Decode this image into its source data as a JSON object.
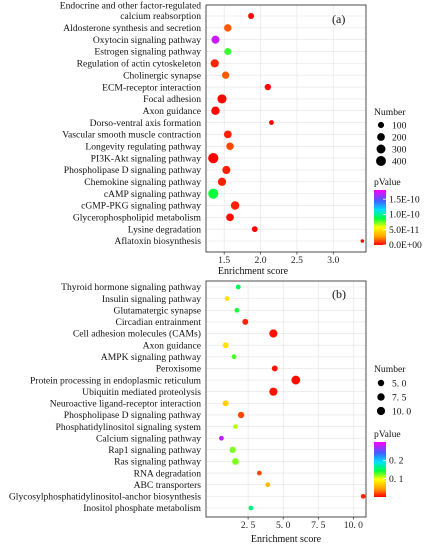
{
  "colors": {
    "background": "#ffffff",
    "grid": "#e3e3e3",
    "panel_border": "#222222",
    "gradient": [
      "#ff0000",
      "#ffa000",
      "#ffff00",
      "#00ff40",
      "#00e0ff",
      "#4060ff",
      "#ff00ff"
    ]
  },
  "chart_data": [
    {
      "type": "scatter",
      "panel_label": "(a)",
      "xlabel": "Enrichment score",
      "ylabel": "",
      "xlim": [
        1.25,
        3.45
      ],
      "xticks": [
        1.5,
        2.0,
        2.5,
        3.0
      ],
      "xtick_labels": [
        "1.5",
        "2.0",
        "2.5",
        "3.0"
      ],
      "grid": true,
      "legend_placement": "right",
      "size_legend": {
        "title": "Number",
        "values": [
          100,
          200,
          300,
          400
        ],
        "labels": [
          "100",
          "200",
          "300",
          "400"
        ],
        "range": [
          0,
          450
        ]
      },
      "color_legend": {
        "title": "pValue",
        "min": 0,
        "max": 1.8e-10,
        "ticks": [
          0,
          5e-11,
          1e-10,
          1.5e-10
        ],
        "tick_labels": [
          "0.0E+00",
          "5.0E-11",
          "1.0E-10",
          "1.5E-10"
        ]
      },
      "categories": [
        "Endocrine and other factor-regulated calcium reabsorption",
        "Aldosterone synthesis and secretion",
        "Oxytocin signaling pathway",
        "Estrogen signaling pathway",
        "Regulation of actin cytoskeleton",
        "Cholinergic synapse",
        "ECM-receptor interaction",
        "Focal adhesion",
        "Axon guidance",
        "Dorso-ventral axis formation",
        "Vascular smooth muscle contraction",
        "Longevity regulating pathway",
        "PI3K-Akt signaling pathway",
        "Phospholipase D signaling pathway",
        "Chemokine signaling pathway",
        "cAMP signaling pathway",
        "cGMP-PKG signaling pathway",
        "Glycerophospholipid metabolism",
        "Lysine degradation",
        "Aflatoxin biosynthesis"
      ],
      "category_lines": [
        [
          "Endocrine and other factor-regulated",
          "calcium reabsorption"
        ],
        [
          "Aldosterone synthesis and secretion"
        ],
        [
          "Oxytocin signaling pathway"
        ],
        [
          "Estrogen signaling pathway"
        ],
        [
          "Regulation of actin cytoskeleton"
        ],
        [
          "Cholinergic synapse"
        ],
        [
          "ECM-receptor interaction"
        ],
        [
          "Focal adhesion"
        ],
        [
          "Axon guidance"
        ],
        [
          "Dorso-ventral axis formation"
        ],
        [
          "Vascular smooth muscle contraction"
        ],
        [
          "Longevity regulating pathway"
        ],
        [
          "PI3K-Akt signaling pathway"
        ],
        [
          "Phospholipase D signaling pathway"
        ],
        [
          "Chemokine signaling pathway"
        ],
        [
          "cAMP signaling pathway"
        ],
        [
          "cGMP-PKG signaling pathway"
        ],
        [
          "Glycerophospholipid metabolism"
        ],
        [
          "Lysine degradation"
        ],
        [
          "Aflatoxin biosynthesis"
        ]
      ],
      "x": [
        1.87,
        1.55,
        1.38,
        1.55,
        1.37,
        1.52,
        2.1,
        1.47,
        1.38,
        2.15,
        1.55,
        1.58,
        1.35,
        1.53,
        1.47,
        1.35,
        1.65,
        1.58,
        1.92,
        3.4
      ],
      "number": [
        90,
        180,
        230,
        150,
        240,
        170,
        110,
        320,
        250,
        40,
        200,
        180,
        430,
        230,
        240,
        420,
        260,
        200,
        80,
        10
      ],
      "pvalue": [
        1e-12,
        1.5e-11,
        1.7e-10,
        8e-11,
        6e-12,
        1.5e-11,
        1e-12,
        1e-13,
        1e-12,
        1e-13,
        5e-12,
        1.2e-11,
        1e-14,
        5e-12,
        5e-12,
        8.5e-11,
        5e-12,
        2e-12,
        1e-13,
        1e-13
      ]
    },
    {
      "type": "scatter",
      "panel_label": "(b)",
      "xlabel": "Enrichment score",
      "ylabel": "",
      "xlim": [
        -0.5,
        10.9
      ],
      "xticks": [
        2.5,
        5.0,
        7.5,
        10.0
      ],
      "xtick_labels": [
        "2. 5",
        "5. 0",
        "7. 5",
        "10. 0"
      ],
      "grid": true,
      "legend_placement": "right",
      "size_legend": {
        "title": "Number",
        "values": [
          5,
          7.5,
          10
        ],
        "labels": [
          "5. 0",
          "7. 5",
          "10. 0"
        ],
        "range": [
          0,
          12
        ]
      },
      "color_legend": {
        "title": "pValue",
        "min": 0,
        "max": 0.3,
        "ticks": [
          0.1,
          0.2
        ],
        "tick_labels": [
          "0. 1",
          "0. 2"
        ]
      },
      "categories": [
        "Thyroid hormone signaling pathway",
        "Insulin signaling pathway",
        "Glutamatergic synapse",
        "Circadian entrainment",
        "Cell adhesion molecules (CAMs)",
        "Axon guidance",
        "AMPK signaling pathway",
        "Peroxisome",
        "Protein processing in endoplasmic reticulum",
        "Ubiquitin mediated proteolysis",
        "Neuroactive ligand-receptor interaction",
        "Phospholipase D signaling pathway",
        "Phosphatidylinositol signaling system",
        "Calcium signaling pathway",
        "Rap1 signaling pathway",
        "Ras signaling pathway",
        "RNA degradation",
        "ABC transporters",
        "Glycosylphosphatidylinositol-anchor biosynthesis",
        "Inositol phosphate metabolism"
      ],
      "category_lines": [
        [
          "Thyroid hormone signaling pathway"
        ],
        [
          "Insulin signaling pathway"
        ],
        [
          "Glutamatergic synapse"
        ],
        [
          "Circadian entrainment"
        ],
        [
          "Cell adhesion molecules (CAMs)"
        ],
        [
          "Axon guidance"
        ],
        [
          "AMPK signaling pathway"
        ],
        [
          "Peroxisome"
        ],
        [
          "Protein processing in endoplasmic reticulum"
        ],
        [
          "Ubiquitin mediated proteolysis"
        ],
        [
          "Neuroactive ligand-receptor interaction"
        ],
        [
          "Phospholipase D signaling pathway"
        ],
        [
          "Phosphatidylinositol signaling system"
        ],
        [
          "Calcium signaling pathway"
        ],
        [
          "Rap1 signaling pathway"
        ],
        [
          "Ras signaling pathway"
        ],
        [
          "RNA degradation"
        ],
        [
          "ABC transporters"
        ],
        [
          "Glycosylphosphatidylinositol-anchor biosynthesis"
        ],
        [
          "Inositol phosphate metabolism"
        ]
      ],
      "x": [
        1.8,
        1.0,
        1.7,
        2.3,
        4.3,
        0.9,
        1.5,
        4.4,
        5.9,
        4.3,
        0.9,
        2.0,
        1.6,
        0.6,
        1.4,
        1.6,
        3.3,
        3.9,
        10.7,
        2.7
      ],
      "number": [
        2,
        2,
        2,
        4,
        10,
        4,
        2,
        4,
        12,
        10,
        4,
        5,
        2,
        2,
        5,
        6,
        2,
        2,
        2,
        2
      ],
      "pvalue": [
        0.15,
        0.08,
        0.14,
        0.01,
        0.005,
        0.08,
        0.13,
        0.005,
        0.003,
        0.005,
        0.07,
        0.02,
        0.11,
        0.28,
        0.12,
        0.12,
        0.02,
        0.06,
        0.01,
        0.16
      ]
    }
  ]
}
